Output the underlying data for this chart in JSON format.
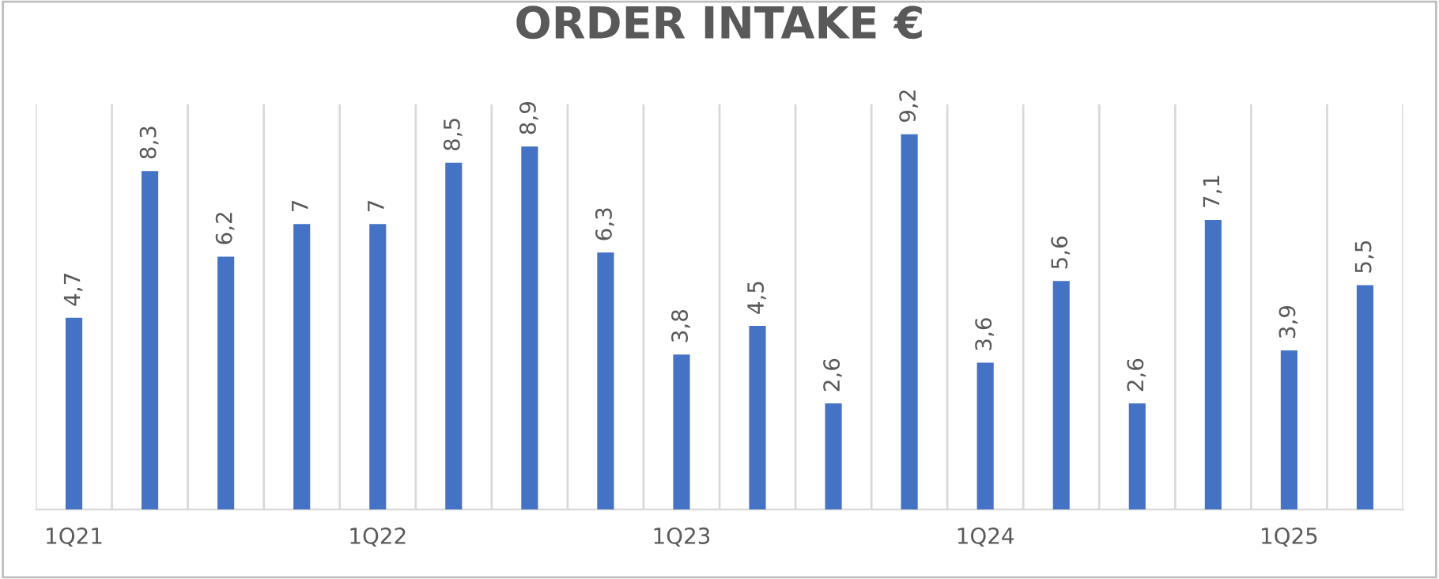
{
  "chart_data": {
    "type": "bar",
    "title": "ORDER INTAKE €",
    "categories": [
      "1Q21",
      null,
      null,
      null,
      "1Q22",
      null,
      null,
      null,
      "1Q23",
      null,
      null,
      null,
      "1Q24",
      null,
      null,
      null,
      "1Q25",
      null
    ],
    "values": [
      4.7,
      8.3,
      6.2,
      7,
      7,
      8.5,
      8.9,
      6.3,
      3.8,
      4.5,
      2.6,
      9.2,
      3.6,
      5.6,
      2.6,
      7.1,
      3.9,
      5.5
    ],
    "value_labels": [
      "4,7",
      "8,3",
      "6,2",
      "7",
      "7",
      "8,5",
      "8,9",
      "6,3",
      "3,8",
      "4,5",
      "2,6",
      "9,2",
      "3,6",
      "5,6",
      "2,6",
      "7,1",
      "3,9",
      "5,5"
    ],
    "color": "#4472c4",
    "grid": "x",
    "legend": false
  }
}
